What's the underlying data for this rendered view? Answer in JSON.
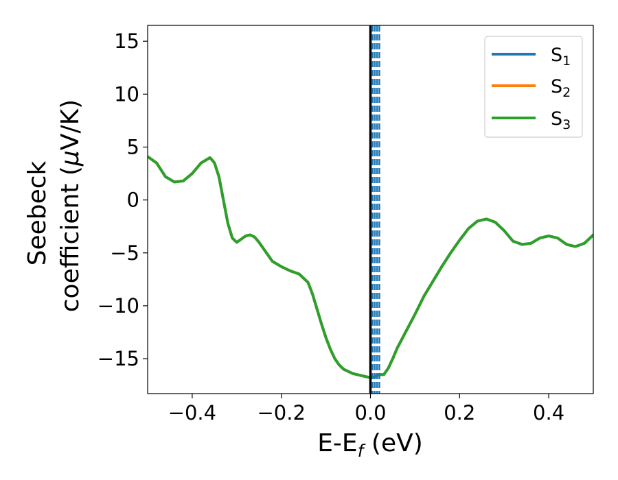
{
  "chart_data": {
    "type": "line",
    "xlabel": {
      "main": "E-E",
      "sub": "f",
      "unit": " (eV)"
    },
    "ylabel": {
      "line1": "Seebeck",
      "line2_prefix": "coefficient  (",
      "mu": "μ",
      "line2_suffix": "V/K)"
    },
    "xlim": [
      -0.5,
      0.5
    ],
    "ylim": [
      -18.3,
      16.5
    ],
    "xticks": [
      {
        "value": -0.4,
        "label": "−0.4"
      },
      {
        "value": -0.2,
        "label": "−0.2"
      },
      {
        "value": 0.0,
        "label": "0.0"
      },
      {
        "value": 0.2,
        "label": "0.2"
      },
      {
        "value": 0.4,
        "label": "0.4"
      }
    ],
    "yticks": [
      {
        "value": 15,
        "label": "15"
      },
      {
        "value": 10,
        "label": "10"
      },
      {
        "value": 5,
        "label": "5"
      },
      {
        "value": 0,
        "label": "0"
      },
      {
        "value": -5,
        "label": "−5"
      },
      {
        "value": -10,
        "label": "−10"
      },
      {
        "value": -15,
        "label": "−15"
      }
    ],
    "legend_position": "top-right",
    "series": [
      {
        "name": "S",
        "sub": "1",
        "color": "#1f77b4",
        "x": [
          -0.5,
          -0.48,
          -0.46,
          -0.44,
          -0.42,
          -0.4,
          -0.38,
          -0.36,
          -0.35,
          -0.34,
          -0.33,
          -0.32,
          -0.31,
          -0.3,
          -0.29,
          -0.28,
          -0.27,
          -0.26,
          -0.25,
          -0.24,
          -0.23,
          -0.22,
          -0.2,
          -0.18,
          -0.16,
          -0.14,
          -0.13,
          -0.12,
          -0.11,
          -0.1,
          -0.09,
          -0.08,
          -0.07,
          -0.06,
          -0.05,
          -0.04,
          -0.02,
          0.0,
          0.01,
          0.02,
          0.03,
          0.04,
          0.05,
          0.06,
          0.08,
          0.1,
          0.12,
          0.14,
          0.16,
          0.18,
          0.2,
          0.22,
          0.24,
          0.26,
          0.28,
          0.3,
          0.32,
          0.34,
          0.36,
          0.38,
          0.4,
          0.42,
          0.44,
          0.46,
          0.48,
          0.5
        ],
        "y": [
          4.1,
          3.5,
          2.2,
          1.7,
          1.8,
          2.5,
          3.5,
          4.0,
          3.5,
          2.2,
          0.0,
          -2.2,
          -3.6,
          -4.0,
          -3.7,
          -3.4,
          -3.3,
          -3.5,
          -4.0,
          -4.6,
          -5.2,
          -5.8,
          -6.3,
          -6.7,
          -7.0,
          -7.8,
          -8.9,
          -10.3,
          -11.7,
          -13.0,
          -14.1,
          -15.0,
          -15.6,
          -16.0,
          -16.2,
          -16.4,
          -16.6,
          -16.8,
          -16.7,
          -16.5,
          -16.5,
          -15.9,
          -15.0,
          -14.0,
          -12.4,
          -10.8,
          -9.1,
          -7.7,
          -6.3,
          -5.0,
          -3.8,
          -2.7,
          -2.0,
          -1.8,
          -2.1,
          -2.9,
          -3.9,
          -4.2,
          -4.1,
          -3.6,
          -3.4,
          -3.6,
          -4.2,
          -4.4,
          -4.1,
          -3.3
        ]
      },
      {
        "name": "S",
        "sub": "2",
        "color": "#ff7f0e",
        "same_as": 0
      },
      {
        "name": "S",
        "sub": "3",
        "color": "#2ca02c",
        "same_as": 0
      }
    ],
    "vlines": [
      {
        "x": 0.0,
        "color": "#000000",
        "style": "solid"
      },
      {
        "x": 0.005,
        "color": "#1f77b4",
        "style": "dashed"
      },
      {
        "x": 0.01,
        "color": "#1f77b4",
        "style": "dashed"
      },
      {
        "x": 0.015,
        "color": "#1f77b4",
        "style": "dashed"
      },
      {
        "x": 0.02,
        "color": "#1f77b4",
        "style": "dashed"
      }
    ]
  }
}
